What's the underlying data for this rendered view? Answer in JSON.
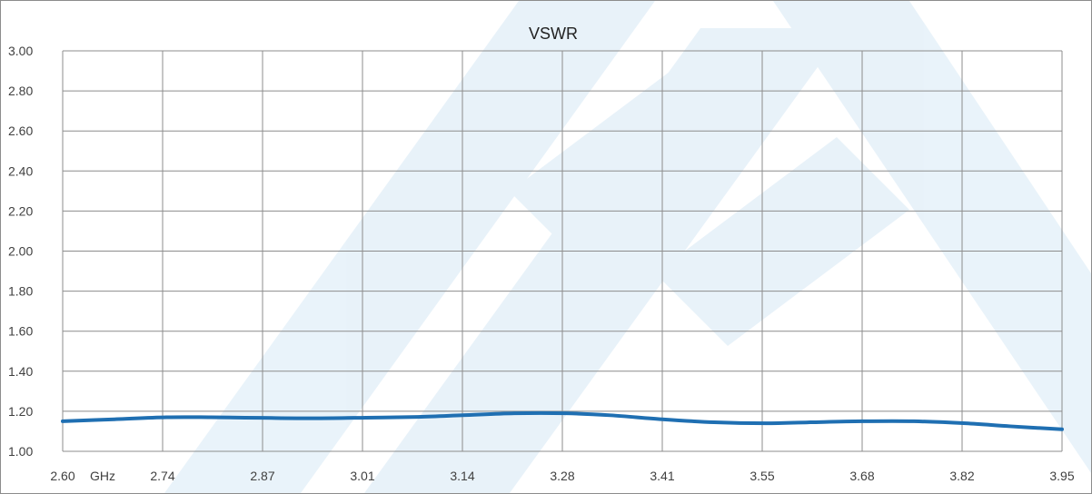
{
  "chart_data": {
    "type": "line",
    "title": "VSWR",
    "xlabel": "",
    "ylabel": "",
    "x_unit": "GHz",
    "x_ticks": [
      "2.60",
      "2.74",
      "2.87",
      "3.01",
      "3.14",
      "3.28",
      "3.41",
      "3.55",
      "3.68",
      "3.82",
      "3.95"
    ],
    "y_ticks": [
      "1.00",
      "1.20",
      "1.40",
      "1.60",
      "1.80",
      "2.00",
      "2.20",
      "2.40",
      "2.60",
      "2.80",
      "3.00"
    ],
    "xlim": [
      2.6,
      3.95
    ],
    "ylim": [
      1.0,
      3.0
    ],
    "grid": true,
    "legend": "none",
    "series": [
      {
        "color": "#1f6fb2",
        "x": [
          2.6,
          2.67,
          2.74,
          2.8,
          2.87,
          2.94,
          3.01,
          3.08,
          3.14,
          3.21,
          3.28,
          3.34,
          3.41,
          3.48,
          3.55,
          3.61,
          3.68,
          3.75,
          3.82,
          3.88,
          3.95
        ],
        "y": [
          1.15,
          1.16,
          1.17,
          1.17,
          1.167,
          1.165,
          1.168,
          1.172,
          1.18,
          1.19,
          1.19,
          1.18,
          1.16,
          1.145,
          1.14,
          1.145,
          1.15,
          1.15,
          1.14,
          1.125,
          1.11
        ]
      }
    ]
  }
}
